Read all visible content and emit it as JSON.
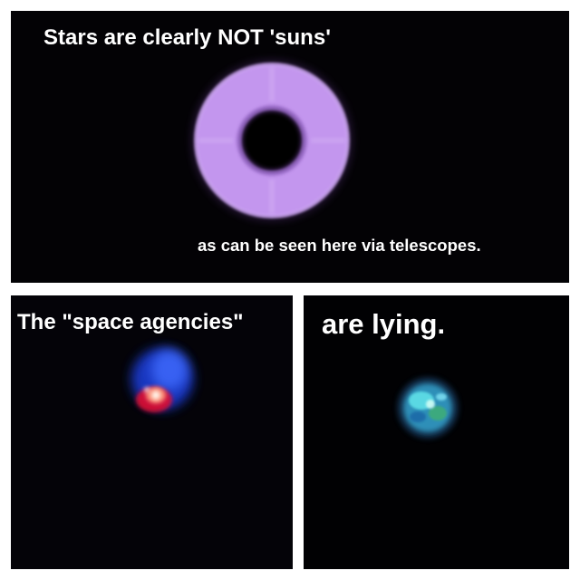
{
  "captions": {
    "top_title": "Stars are clearly NOT 'suns'",
    "top_subtitle": "as can be seen here via telescopes.",
    "bottom_left": "The \"space agencies\"",
    "bottom_right": "are lying."
  },
  "images": {
    "top": "purple-ring-star",
    "bottom_left": "red-blue-star",
    "bottom_right": "teal-star"
  },
  "colors": {
    "panel_background": "#000000",
    "page_background": "#ffffff",
    "caption_text": "#ffffff",
    "ring_purple": "#c79af0",
    "star_blue": "#2a55ff",
    "star_red": "#e0102a",
    "star_teal": "#3fc6d8"
  }
}
